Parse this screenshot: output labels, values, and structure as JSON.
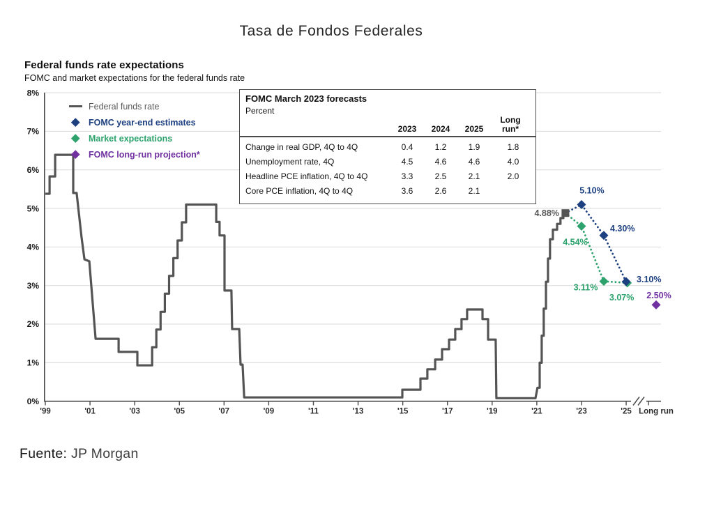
{
  "page": {
    "title": "Tasa de Fondos Federales",
    "source_label": "Fuente:",
    "source_value": "JP Morgan"
  },
  "chart": {
    "heading": "Federal funds rate expectations",
    "subheading": "FOMC and market expectations for the federal funds rate",
    "legend": [
      {
        "label": "Federal funds rate",
        "marker": "dash",
        "color": "#545454",
        "text_color": "#595959"
      },
      {
        "label": "FOMC year-end estimates",
        "marker": "diamond",
        "color": "#1d4080"
      },
      {
        "label": "Market expectations",
        "marker": "diamond",
        "color": "#2da26c"
      },
      {
        "label": "FOMC long-run projection*",
        "marker": "diamond",
        "color": "#7030a0"
      }
    ]
  },
  "forecast_table": {
    "title": "FOMC March 2023 forecasts",
    "unit": "Percent",
    "columns": [
      "2023",
      "2024",
      "2025",
      "Long run*"
    ],
    "rows": [
      {
        "label": "Change in real GDP, 4Q to 4Q",
        "values": [
          "0.4",
          "1.2",
          "1.9",
          "1.8"
        ]
      },
      {
        "label": "Unemployment rate, 4Q",
        "values": [
          "4.5",
          "4.6",
          "4.6",
          "4.0"
        ]
      },
      {
        "label": "Headline PCE inflation, 4Q to 4Q",
        "values": [
          "3.3",
          "2.5",
          "2.1",
          "2.0"
        ]
      },
      {
        "label": "Core PCE inflation, 4Q to 4Q",
        "values": [
          "3.6",
          "2.6",
          "2.1",
          ""
        ]
      }
    ]
  },
  "chart_data": {
    "type": "line",
    "title": "Federal funds rate expectations",
    "subtitle": "FOMC and market expectations for the federal funds rate",
    "ylim": [
      0,
      8
    ],
    "grid": "horizontal",
    "y_ticks": [
      "8%",
      "7%",
      "6%",
      "5%",
      "4%",
      "3%",
      "2%",
      "1%",
      "0%"
    ],
    "x_ticks": [
      "'99",
      "'01",
      "'03",
      "'05",
      "'07",
      "'09",
      "'11",
      "'13",
      "'15",
      "'17",
      "'19",
      "'21",
      "'23",
      "'25"
    ],
    "x_axis_extra": "Long run",
    "axis_break_between": [
      "'25",
      "Long run"
    ],
    "series": [
      {
        "name": "Federal funds rate",
        "type": "step_line",
        "color": "#545454",
        "endpoint": [
          2022.28,
          4.88
        ],
        "endpoint_label": "4.88%",
        "points": [
          [
            1999.0,
            5.38
          ],
          [
            1999.19,
            5.38
          ],
          [
            1999.19,
            5.83
          ],
          [
            1999.44,
            5.83
          ],
          [
            1999.44,
            6.39
          ],
          [
            2000.25,
            6.39
          ],
          [
            2000.25,
            5.4
          ],
          [
            2000.4,
            5.4
          ],
          [
            2000.62,
            4.26
          ],
          [
            2000.75,
            3.68
          ],
          [
            2000.97,
            3.63
          ],
          [
            2001.25,
            1.62
          ],
          [
            2002.28,
            1.62
          ],
          [
            2002.28,
            1.28
          ],
          [
            2003.12,
            1.28
          ],
          [
            2003.12,
            0.93
          ],
          [
            2003.78,
            0.93
          ],
          [
            2003.78,
            1.4
          ],
          [
            2003.97,
            1.4
          ],
          [
            2003.97,
            1.86
          ],
          [
            2004.16,
            1.86
          ],
          [
            2004.16,
            2.32
          ],
          [
            2004.35,
            2.32
          ],
          [
            2004.35,
            2.79
          ],
          [
            2004.54,
            2.79
          ],
          [
            2004.54,
            3.25
          ],
          [
            2004.73,
            3.25
          ],
          [
            2004.73,
            3.71
          ],
          [
            2004.92,
            3.71
          ],
          [
            2004.92,
            4.17
          ],
          [
            2005.11,
            4.17
          ],
          [
            2005.11,
            4.64
          ],
          [
            2005.3,
            4.64
          ],
          [
            2005.3,
            5.1
          ],
          [
            2006.65,
            5.1
          ],
          [
            2006.65,
            4.65
          ],
          [
            2006.8,
            4.65
          ],
          [
            2006.8,
            4.3
          ],
          [
            2007.02,
            4.3
          ],
          [
            2007.02,
            2.87
          ],
          [
            2007.33,
            2.87
          ],
          [
            2007.36,
            1.87
          ],
          [
            2007.68,
            1.87
          ],
          [
            2007.74,
            0.95
          ],
          [
            2007.83,
            0.95
          ],
          [
            2007.9,
            0.1
          ],
          [
            2014.98,
            0.1
          ],
          [
            2014.98,
            0.3
          ],
          [
            2015.79,
            0.3
          ],
          [
            2015.79,
            0.59
          ],
          [
            2016.1,
            0.59
          ],
          [
            2016.1,
            0.83
          ],
          [
            2016.45,
            0.83
          ],
          [
            2016.45,
            1.08
          ],
          [
            2016.76,
            1.08
          ],
          [
            2016.76,
            1.35
          ],
          [
            2017.07,
            1.35
          ],
          [
            2017.07,
            1.6
          ],
          [
            2017.35,
            1.6
          ],
          [
            2017.35,
            1.87
          ],
          [
            2017.63,
            1.87
          ],
          [
            2017.63,
            2.13
          ],
          [
            2017.88,
            2.13
          ],
          [
            2017.88,
            2.38
          ],
          [
            2018.57,
            2.38
          ],
          [
            2018.57,
            2.13
          ],
          [
            2018.82,
            2.13
          ],
          [
            2018.82,
            1.6
          ],
          [
            2019.16,
            1.6
          ],
          [
            2019.19,
            0.08
          ],
          [
            2020.94,
            0.08
          ],
          [
            2021.03,
            0.35
          ],
          [
            2021.13,
            0.35
          ],
          [
            2021.13,
            1.0
          ],
          [
            2021.22,
            1.0
          ],
          [
            2021.22,
            1.7
          ],
          [
            2021.31,
            1.7
          ],
          [
            2021.31,
            2.4
          ],
          [
            2021.41,
            2.4
          ],
          [
            2021.41,
            3.1
          ],
          [
            2021.5,
            3.1
          ],
          [
            2021.5,
            3.7
          ],
          [
            2021.59,
            3.7
          ],
          [
            2021.59,
            4.2
          ],
          [
            2021.72,
            4.2
          ],
          [
            2021.72,
            4.45
          ],
          [
            2021.91,
            4.45
          ],
          [
            2021.91,
            4.6
          ],
          [
            2022.06,
            4.6
          ],
          [
            2022.06,
            4.75
          ],
          [
            2022.19,
            4.75
          ],
          [
            2022.19,
            4.88
          ],
          [
            2022.28,
            4.88
          ]
        ]
      },
      {
        "name": "FOMC year-end estimates",
        "type": "scatter",
        "dotted_connector": true,
        "color": "#1d4080",
        "points": [
          [
            2023,
            5.1
          ],
          [
            2024,
            4.3
          ],
          [
            2025,
            3.1
          ]
        ],
        "point_labels": [
          "5.10%",
          "4.30%",
          "3.10%"
        ]
      },
      {
        "name": "Market expectations",
        "type": "scatter",
        "dotted_connector": true,
        "color": "#2da26c",
        "points": [
          [
            2023,
            4.54
          ],
          [
            2024,
            3.11
          ],
          [
            2025.05,
            3.07
          ]
        ],
        "point_labels": [
          "4.54%",
          "3.11%",
          "3.07%"
        ]
      },
      {
        "name": "FOMC long-run projection*",
        "type": "scatter",
        "dotted_connector": false,
        "color": "#7030a0",
        "points": [
          [
            "Long run",
            2.5
          ]
        ],
        "point_labels": [
          "2.50%"
        ]
      }
    ]
  }
}
